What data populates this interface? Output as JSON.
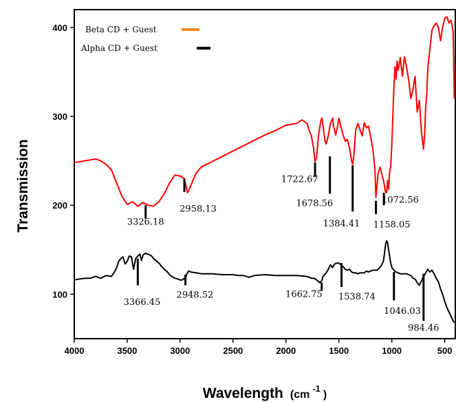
{
  "chart_data": {
    "type": "line",
    "title": "",
    "xlabel": "Wavelength",
    "xlabel_unit": "(cm",
    "xlabel_sup": "-1",
    "xlabel_close": ")",
    "ylabel": "Transmission",
    "xlim": [
      4000,
      400
    ],
    "ylim": [
      50,
      420
    ],
    "x_reversed": true,
    "xticks": [
      4000,
      3500,
      3000,
      2500,
      2000,
      1500,
      1000,
      500
    ],
    "xtick_labels": [
      "4000",
      "3500",
      "3000",
      "2500",
      "2000",
      "1500",
      "1000",
      "500"
    ],
    "yticks": [
      100,
      200,
      300,
      400
    ],
    "ytick_labels": [
      "100",
      "200",
      "300",
      "400"
    ],
    "grid": false,
    "legend_position": "top-left",
    "legend": [
      {
        "label": "Beta CD + Guest",
        "color": "#ff8c1a"
      },
      {
        "label": "Alpha CD + Guest",
        "color": "#000000"
      }
    ],
    "series": [
      {
        "name": "Beta CD + Guest",
        "color": "#ff0000",
        "x": [
          4000,
          3900,
          3800,
          3750,
          3700,
          3650,
          3600,
          3550,
          3500,
          3450,
          3400,
          3350,
          3300,
          3250,
          3200,
          3150,
          3100,
          3050,
          3000,
          2960,
          2930,
          2900,
          2850,
          2800,
          2700,
          2600,
          2500,
          2400,
          2300,
          2200,
          2100,
          2000,
          1900,
          1850,
          1800,
          1780,
          1760,
          1740,
          1725,
          1710,
          1700,
          1690,
          1680,
          1670,
          1660,
          1650,
          1640,
          1630,
          1620,
          1600,
          1580,
          1560,
          1550,
          1530,
          1510,
          1500,
          1480,
          1460,
          1440,
          1420,
          1400,
          1390,
          1380,
          1370,
          1360,
          1350,
          1340,
          1320,
          1300,
          1280,
          1260,
          1240,
          1220,
          1200,
          1180,
          1160,
          1150,
          1130,
          1110,
          1090,
          1075,
          1060,
          1050,
          1040,
          1030,
          1020,
          1010,
          1000,
          990,
          980,
          970,
          960,
          950,
          940,
          920,
          900,
          880,
          860,
          840,
          820,
          800,
          780,
          760,
          740,
          720,
          700,
          690,
          680,
          670,
          660,
          640,
          620,
          600,
          580,
          560,
          540,
          520,
          500,
          480,
          460,
          440,
          420,
          410
        ],
        "y": [
          248,
          250,
          252,
          250,
          246,
          240,
          225,
          210,
          201,
          204,
          199,
          203,
          200,
          199,
          204,
          213,
          225,
          234,
          233,
          230,
          214,
          222,
          236,
          243,
          249,
          255,
          261,
          267,
          273,
          279,
          284,
          290,
          292,
          296,
          292,
          284,
          278,
          265,
          249,
          254,
          268,
          281,
          288,
          296,
          298,
          290,
          280,
          272,
          269,
          278,
          292,
          298,
          289,
          279,
          290,
          298,
          288,
          279,
          272,
          274,
          265,
          258,
          250,
          246,
          255,
          270,
          285,
          292,
          285,
          278,
          293,
          287,
          289,
          277,
          264,
          242,
          209,
          236,
          243,
          233,
          226,
          215,
          214,
          228,
          218,
          238,
          244,
          268,
          302,
          332,
          356,
          342,
          362,
          352,
          366,
          345,
          367,
          355,
          340,
          320,
          330,
          345,
          305,
          318,
          282,
          263,
          280,
          310,
          325,
          355,
          376,
          397,
          402,
          405,
          400,
          385,
          400,
          410,
          412,
          405,
          408,
          395,
          320
        ]
      },
      {
        "name": "Alpha CD + Guest",
        "color": "#000000",
        "x": [
          4000,
          3950,
          3900,
          3850,
          3800,
          3750,
          3700,
          3650,
          3620,
          3600,
          3580,
          3560,
          3540,
          3520,
          3500,
          3480,
          3460,
          3440,
          3420,
          3400,
          3380,
          3366,
          3350,
          3330,
          3300,
          3270,
          3250,
          3220,
          3200,
          3180,
          3150,
          3120,
          3100,
          3080,
          3050,
          3020,
          3000,
          2980,
          2960,
          2950,
          2940,
          2920,
          2900,
          2850,
          2800,
          2700,
          2600,
          2500,
          2450,
          2400,
          2350,
          2300,
          2200,
          2100,
          2000,
          1900,
          1800,
          1760,
          1740,
          1720,
          1700,
          1680,
          1662,
          1650,
          1620,
          1600,
          1580,
          1560,
          1540,
          1520,
          1500,
          1480,
          1460,
          1440,
          1420,
          1400,
          1380,
          1360,
          1340,
          1320,
          1300,
          1280,
          1260,
          1240,
          1220,
          1200,
          1180,
          1160,
          1140,
          1120,
          1100,
          1080,
          1070,
          1060,
          1050,
          1040,
          1030,
          1020,
          1010,
          1000,
          980,
          960,
          940,
          920,
          900,
          880,
          860,
          840,
          820,
          800,
          780,
          760,
          740,
          720,
          700,
          680,
          660,
          640,
          620,
          600,
          580,
          560,
          540,
          520,
          500,
          480,
          460,
          440,
          420,
          410
        ],
        "y": [
          116,
          117,
          118,
          118,
          120,
          118,
          121,
          120,
          125,
          130,
          137,
          140,
          142,
          134,
          137,
          143,
          142,
          128,
          140,
          143,
          145,
          138,
          144,
          146,
          145,
          143,
          140,
          137,
          135,
          132,
          128,
          125,
          122,
          120,
          118,
          117,
          116,
          116,
          118,
          117,
          122,
          126,
          125,
          124,
          123,
          123,
          122,
          122,
          121,
          121,
          119,
          121,
          122,
          121,
          121,
          121,
          120,
          118,
          118,
          117,
          115,
          113,
          115,
          120,
          124,
          128,
          133,
          130,
          134,
          135,
          135,
          133,
          131,
          128,
          127,
          128,
          125,
          124,
          124,
          123,
          124,
          124,
          124,
          126,
          125,
          126,
          127,
          127,
          127,
          129,
          132,
          137,
          145,
          155,
          160,
          158,
          150,
          142,
          135,
          130,
          127,
          125,
          124,
          123,
          123,
          123,
          123,
          122,
          121,
          118,
          117,
          113,
          110,
          115,
          120,
          124,
          128,
          125,
          127,
          123,
          118,
          114,
          106,
          100,
          92,
          85,
          80,
          75,
          70,
          68
        ]
      }
    ],
    "annotations": [
      {
        "text": "3326.18",
        "series": "Beta CD + Guest",
        "x": 3326,
        "y_from": 200,
        "y_to": 185,
        "text_x": 3326,
        "text_y": 178,
        "anchor": "middle"
      },
      {
        "text": "2958.13",
        "series": "Beta CD + Guest",
        "x": 2960,
        "y_from": 230,
        "y_to": 215,
        "text_x": 2830,
        "text_y": 193,
        "anchor": "middle"
      },
      {
        "text": "1722.67",
        "series": "Beta CD + Guest",
        "x": 1725,
        "y_from": 248,
        "y_to": 232,
        "text_x": 1870,
        "text_y": 226,
        "anchor": "middle"
      },
      {
        "text": "1678.56",
        "series": "Beta CD + Guest",
        "x": 1585,
        "y_from": 255,
        "y_to": 213,
        "text_x": 1730,
        "text_y": 199,
        "anchor": "middle"
      },
      {
        "text": "1384.41",
        "series": "Beta CD + Guest",
        "x": 1370,
        "y_from": 245,
        "y_to": 193,
        "text_x": 1475,
        "text_y": 176,
        "anchor": "middle"
      },
      {
        "text": "1158.05",
        "series": "Beta CD + Guest",
        "x": 1150,
        "y_from": 205,
        "y_to": 190,
        "text_x": 1000,
        "text_y": 175,
        "anchor": "middle"
      },
      {
        "text": "1072.56",
        "series": "Beta CD + Guest",
        "x": 1075,
        "y_from": 214,
        "y_to": 200,
        "text_x": 920,
        "text_y": 203,
        "anchor": "middle"
      },
      {
        "text": "3366.45",
        "series": "Alpha CD + Guest",
        "x": 3400,
        "y_from": 140,
        "y_to": 110,
        "text_x": 3360,
        "text_y": 88,
        "anchor": "middle"
      },
      {
        "text": "2948.52",
        "series": "Alpha CD + Guest",
        "x": 2950,
        "y_from": 122,
        "y_to": 110,
        "text_x": 2860,
        "text_y": 96,
        "anchor": "middle"
      },
      {
        "text": "1662.75",
        "series": "Alpha CD + Guest",
        "x": 1662,
        "y_from": 113,
        "y_to": 104,
        "text_x": 1830,
        "text_y": 97,
        "anchor": "middle"
      },
      {
        "text": "1538.74",
        "series": "Alpha CD + Guest",
        "x": 1475,
        "y_from": 135,
        "y_to": 108,
        "text_x": 1330,
        "text_y": 94,
        "anchor": "middle"
      },
      {
        "text": "1046.03",
        "series": "Alpha CD + Guest",
        "x": 980,
        "y_from": 125,
        "y_to": 93,
        "text_x": 900,
        "text_y": 78,
        "anchor": "middle"
      },
      {
        "text": "984.46",
        "series": "Alpha CD + Guest",
        "x": 700,
        "y_from": 123,
        "y_to": 70,
        "text_x": 700,
        "text_y": 59,
        "anchor": "middle"
      }
    ]
  }
}
